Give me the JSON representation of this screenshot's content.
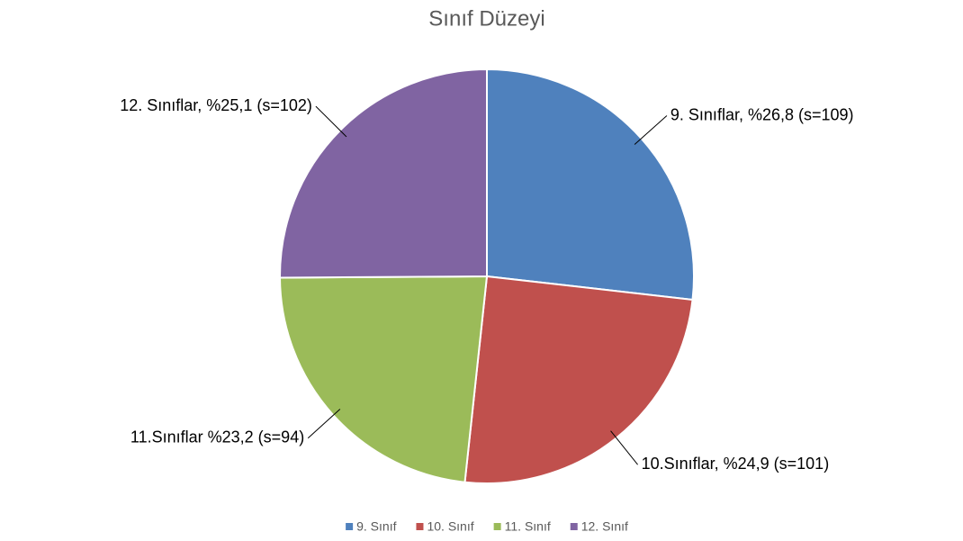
{
  "chart_data": {
    "type": "pie",
    "title": "Sınıf Düzeyi",
    "categories": [
      "9. Sınıf",
      "10. Sınıf",
      "11. Sınıf",
      "12. Sınıf"
    ],
    "values": [
      26.8,
      24.9,
      23.2,
      25.1
    ],
    "value_labels": [
      "9. Sınıflar, %26,8 (s=109)",
      "10.Sınıflar, %24,9 (s=101)",
      "11.Sınıflar %23,2 (s=94)",
      "12. Sınıflar, %25,1 (s=102)"
    ],
    "colors": [
      "#4f81bd",
      "#c0504d",
      "#9bbb59",
      "#8064a2"
    ],
    "legend": "bottom"
  }
}
